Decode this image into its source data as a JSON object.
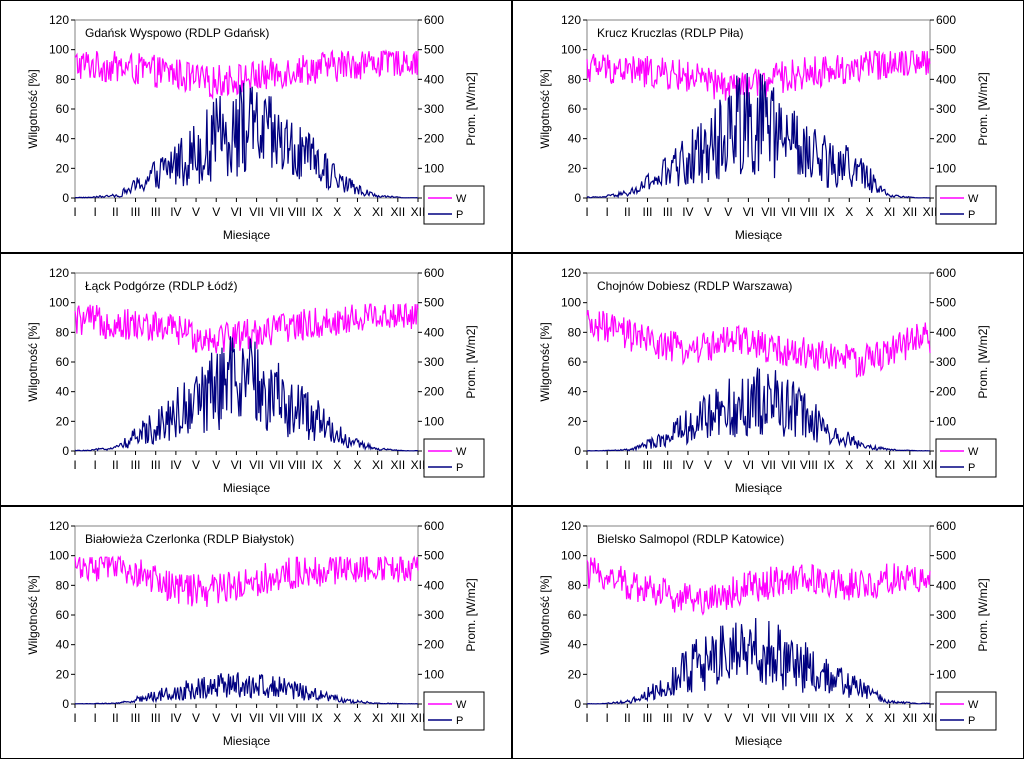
{
  "colors": {
    "humidity": "#ff00ff",
    "radiation": "#000080"
  },
  "chart_data": [
    {
      "type": "line",
      "title": "Gdańsk Wyspowo (RDLP Gdańsk)",
      "xlabel": "Miesiące",
      "ylabel": "Wilgotność [%]",
      "y2label": "Prom. [W/m2]",
      "ylim": [
        0,
        120
      ],
      "y2lim": [
        0,
        600
      ],
      "yticks": [
        "0",
        "20",
        "40",
        "60",
        "80",
        "100",
        "120"
      ],
      "y2ticks": [
        "0",
        "100",
        "200",
        "300",
        "400",
        "500",
        "600"
      ],
      "xtick_labels": [
        "I",
        "I",
        "II",
        "III",
        "III",
        "IV",
        "V",
        "V",
        "VI",
        "VII",
        "VII",
        "VIII",
        "IX",
        "X",
        "X",
        "XI",
        "XII",
        "XII"
      ],
      "legend": [
        "W",
        "P"
      ],
      "legend_position": "bottom-right",
      "x": [
        "I",
        "II",
        "III",
        "IV",
        "V",
        "VI",
        "VII",
        "VIII",
        "IX",
        "X",
        "XI",
        "XII"
      ],
      "series": [
        {
          "name": "W",
          "axis": "left",
          "values": [
            90,
            88,
            86,
            84,
            78,
            80,
            82,
            86,
            88,
            90,
            92,
            93
          ]
        },
        {
          "name": "P",
          "axis": "right",
          "values": [
            2,
            10,
            70,
            140,
            200,
            280,
            260,
            190,
            130,
            50,
            8,
            1
          ]
        }
      ]
    },
    {
      "type": "line",
      "title": "Krucz Kruczlas (RDLP Piła)",
      "xlabel": "Miesiące",
      "ylabel": "Wilgotność [%]",
      "y2label": "Prom. [W/m2]",
      "ylim": [
        0,
        120
      ],
      "y2lim": [
        0,
        600
      ],
      "yticks": [
        "0",
        "20",
        "40",
        "60",
        "80",
        "100",
        "120"
      ],
      "y2ticks": [
        "0",
        "100",
        "200",
        "300",
        "400",
        "500",
        "600"
      ],
      "xtick_labels": [
        "I",
        "I",
        "II",
        "III",
        "III",
        "IV",
        "V",
        "V",
        "VI",
        "VII",
        "VII",
        "VIII",
        "IX",
        "X",
        "X",
        "XI",
        "XII",
        "XII"
      ],
      "legend": [
        "W",
        "P"
      ],
      "legend_position": "bottom-right",
      "x": [
        "I",
        "II",
        "III",
        "IV",
        "V",
        "VI",
        "VII",
        "VIII",
        "IX",
        "X",
        "XI",
        "XII"
      ],
      "series": [
        {
          "name": "W",
          "axis": "left",
          "values": [
            88,
            86,
            84,
            82,
            76,
            74,
            80,
            84,
            86,
            88,
            92,
            94
          ]
        },
        {
          "name": "P",
          "axis": "right",
          "values": [
            3,
            20,
            80,
            150,
            220,
            330,
            270,
            180,
            140,
            110,
            10,
            1
          ]
        }
      ]
    },
    {
      "type": "line",
      "title": "Łąck Podgórze (RDLP Łódź)",
      "xlabel": "Miesiące",
      "ylabel": "Wilgotność [%]",
      "y2label": "Prom. [W/m2]",
      "ylim": [
        0,
        120
      ],
      "y2lim": [
        0,
        600
      ],
      "yticks": [
        "0",
        "20",
        "40",
        "60",
        "80",
        "100",
        "120"
      ],
      "y2ticks": [
        "0",
        "100",
        "200",
        "300",
        "400",
        "500",
        "600"
      ],
      "xtick_labels": [
        "I",
        "I",
        "II",
        "III",
        "III",
        "IV",
        "V",
        "V",
        "VI",
        "VII",
        "VII",
        "VIII",
        "IX",
        "X",
        "X",
        "XI",
        "XII",
        "XII"
      ],
      "legend": [
        "W",
        "P"
      ],
      "legend_position": "bottom-right",
      "x": [
        "I",
        "II",
        "III",
        "IV",
        "V",
        "VI",
        "VII",
        "VIII",
        "IX",
        "X",
        "XI",
        "XII"
      ],
      "series": [
        {
          "name": "W",
          "axis": "left",
          "values": [
            88,
            86,
            84,
            82,
            76,
            78,
            80,
            84,
            86,
            88,
            92,
            92
          ]
        },
        {
          "name": "P",
          "axis": "right",
          "values": [
            2,
            15,
            80,
            150,
            210,
            280,
            250,
            180,
            120,
            40,
            8,
            1
          ]
        }
      ]
    },
    {
      "type": "line",
      "title": "Chojnów Dobiesz (RDLP Warszawa)",
      "xlabel": "Miesiące",
      "ylabel": "Wilgotność [%]",
      "y2label": "Prom. [W/m2]",
      "ylim": [
        0,
        120
      ],
      "y2lim": [
        0,
        600
      ],
      "yticks": [
        "0",
        "20",
        "40",
        "60",
        "80",
        "100",
        "120"
      ],
      "y2ticks": [
        "0",
        "100",
        "200",
        "300",
        "400",
        "500",
        "600"
      ],
      "xtick_labels": [
        "I",
        "I",
        "II",
        "III",
        "III",
        "IV",
        "V",
        "V",
        "VI",
        "VII",
        "VII",
        "VIII",
        "IX",
        "X",
        "X",
        "XI",
        "XII",
        "XII"
      ],
      "legend": [
        "W",
        "P"
      ],
      "legend_position": "bottom-right",
      "x": [
        "I",
        "II",
        "III",
        "IV",
        "V",
        "VI",
        "VII",
        "VIII",
        "IX",
        "X",
        "XI",
        "XII"
      ],
      "series": [
        {
          "name": "W",
          "axis": "left",
          "values": [
            84,
            78,
            72,
            68,
            72,
            74,
            68,
            66,
            64,
            60,
            66,
            76
          ]
        },
        {
          "name": "P",
          "axis": "right",
          "values": [
            1,
            5,
            40,
            100,
            150,
            190,
            200,
            150,
            80,
            25,
            5,
            1
          ]
        }
      ]
    },
    {
      "type": "line",
      "title": "Białowieża Czerlonka (RDLP Białystok)",
      "xlabel": "Miesiące",
      "ylabel": "Wilgotność [%]",
      "y2label": "Prom. [W/m2]",
      "ylim": [
        0,
        120
      ],
      "y2lim": [
        0,
        600
      ],
      "yticks": [
        "0",
        "20",
        "40",
        "60",
        "80",
        "100",
        "120"
      ],
      "y2ticks": [
        "0",
        "100",
        "200",
        "300",
        "400",
        "500",
        "600"
      ],
      "xtick_labels": [
        "I",
        "I",
        "II",
        "III",
        "III",
        "IV",
        "V",
        "V",
        "VI",
        "VII",
        "VII",
        "VIII",
        "IX",
        "X",
        "X",
        "XI",
        "XII",
        "XII"
      ],
      "legend": [
        "W",
        "P"
      ],
      "legend_position": "bottom-right",
      "x": [
        "I",
        "II",
        "III",
        "IV",
        "V",
        "VI",
        "VII",
        "VIII",
        "IX",
        "X",
        "XI",
        "XII"
      ],
      "series": [
        {
          "name": "W",
          "axis": "left",
          "values": [
            94,
            92,
            86,
            78,
            76,
            80,
            84,
            88,
            90,
            92,
            94,
            92
          ]
        },
        {
          "name": "P",
          "axis": "right",
          "values": [
            1,
            3,
            25,
            50,
            70,
            78,
            72,
            60,
            35,
            12,
            3,
            1
          ]
        }
      ]
    },
    {
      "type": "line",
      "title": "Bielsko Salmopol (RDLP Katowice)",
      "xlabel": "Miesiące",
      "ylabel": "Wilgotność [%]",
      "y2label": "Prom. [W/m2]",
      "ylim": [
        0,
        120
      ],
      "y2lim": [
        0,
        600
      ],
      "yticks": [
        "0",
        "20",
        "40",
        "60",
        "80",
        "100",
        "120"
      ],
      "y2ticks": [
        "0",
        "100",
        "200",
        "300",
        "400",
        "500",
        "600"
      ],
      "xtick_labels": [
        "I",
        "I",
        "II",
        "III",
        "III",
        "IV",
        "V",
        "V",
        "VI",
        "VII",
        "VII",
        "VIII",
        "IX",
        "X",
        "X",
        "XI",
        "XII",
        "XII"
      ],
      "legend": [
        "W",
        "P"
      ],
      "legend_position": "bottom-right",
      "x": [
        "I",
        "II",
        "III",
        "IV",
        "V",
        "VI",
        "VII",
        "VIII",
        "IX",
        "X",
        "XI",
        "XII"
      ],
      "series": [
        {
          "name": "W",
          "axis": "left",
          "values": [
            88,
            80,
            76,
            70,
            72,
            78,
            82,
            84,
            82,
            80,
            84,
            84
          ]
        },
        {
          "name": "P",
          "axis": "right",
          "values": [
            1,
            10,
            60,
            140,
            180,
            220,
            200,
            150,
            100,
            60,
            10,
            2
          ]
        }
      ]
    }
  ]
}
